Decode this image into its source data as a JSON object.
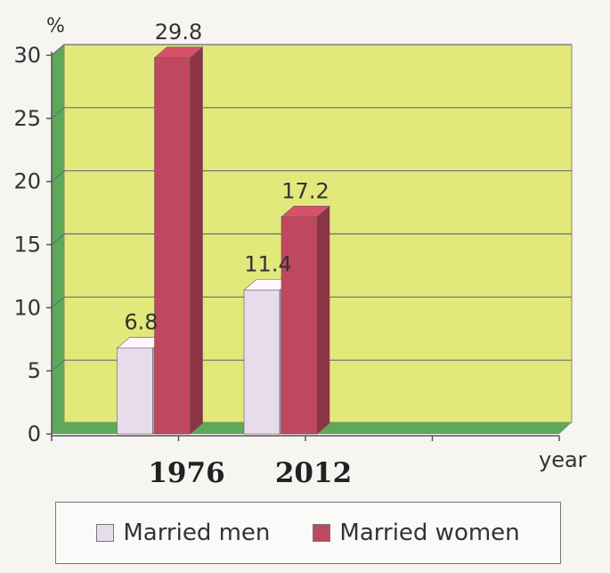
{
  "chart_data": {
    "type": "bar",
    "ylabel": "%",
    "xlabel": "year",
    "categories": [
      "1976",
      "2012"
    ],
    "ylim": [
      0,
      30
    ],
    "yticks": [
      0,
      5,
      10,
      15,
      20,
      25,
      30
    ],
    "grid": true,
    "legend_placement": "bottom",
    "series": [
      {
        "name": "Married men",
        "values": [
          6.8,
          11.4
        ],
        "data_labels": [
          "6.8",
          "11.4"
        ],
        "color": "#e6dcec"
      },
      {
        "name": "Married women",
        "values": [
          29.8,
          17.2
        ],
        "data_labels": [
          "29.8",
          "17.2"
        ],
        "color": "#c0485e"
      }
    ],
    "colors": {
      "plot_background": "#e2e97a",
      "floor_and_wall": "#5ea85a",
      "gridline": "#6a6a7c"
    }
  }
}
